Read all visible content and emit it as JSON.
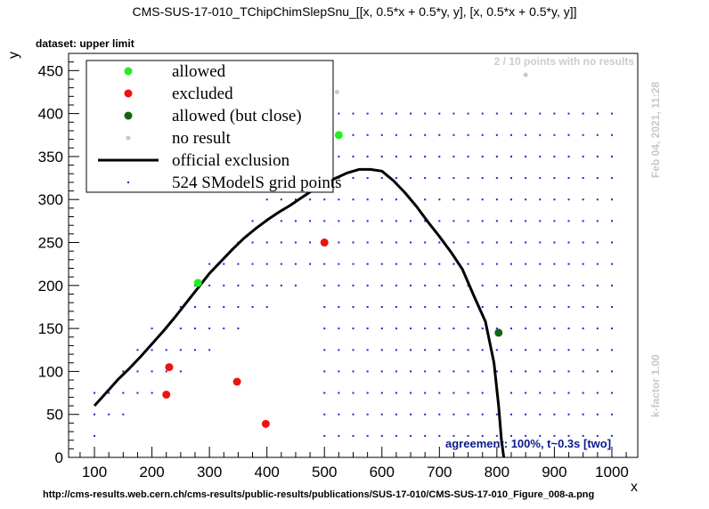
{
  "title": "CMS-SUS-17-010_TChipChimSlepSnu_[[x, 0.5*x + 0.5*y, y], [x, 0.5*x + 0.5*y, y]]",
  "dataset_label": "dataset: upper limit",
  "no_results_note": "2 / 10 points with no results",
  "agreement_note": "agreement: 100%, t~0.3s [two]",
  "url": "http://cms-results.web.cern.ch/cms-results/public-results/publications/SUS-17-010/CMS-SUS-17-010_Figure_008-a.png",
  "date_stamp": "Feb 04, 2021, 11:28",
  "kfactor": "k-factor 1.00",
  "colors": {
    "allowed": "#22ee22",
    "excluded": "#ee1111",
    "allowed_close": "#116611",
    "no_result": "#c8c8c8",
    "grid": "#2222cc",
    "exclusion": "#000000"
  },
  "chart_data": {
    "type": "scatter",
    "xlabel": "x",
    "ylabel": "y",
    "xlim": [
      55,
      1045
    ],
    "ylim": [
      0,
      470
    ],
    "xticks": [
      100,
      200,
      300,
      400,
      500,
      600,
      700,
      800,
      900,
      1000
    ],
    "yticks": [
      0,
      50,
      100,
      150,
      200,
      250,
      300,
      350,
      400,
      450
    ],
    "legend": {
      "position": "top-left",
      "entries": [
        {
          "key": "allowed",
          "label": "allowed"
        },
        {
          "key": "excluded",
          "label": "excluded"
        },
        {
          "key": "allowed_close",
          "label": "allowed (but close)"
        },
        {
          "key": "no_result",
          "label": "no result"
        },
        {
          "key": "exclusion",
          "label": "official exclusion"
        },
        {
          "key": "grid",
          "label": "524 SModelS grid points"
        }
      ]
    },
    "points": {
      "allowed": [
        [
          280,
          203
        ],
        [
          525,
          375
        ]
      ],
      "excluded": [
        [
          225,
          73
        ],
        [
          230,
          105
        ],
        [
          348,
          88
        ],
        [
          398,
          39
        ],
        [
          500,
          250
        ]
      ],
      "allowed_close": [
        [
          803,
          145
        ]
      ],
      "no_result": [
        [
          522,
          425
        ],
        [
          850,
          445
        ]
      ]
    },
    "grid_points": {
      "x_start": 100,
      "x_end": 1000,
      "x_step": 25,
      "y_start": 25,
      "y_end": 400,
      "y_step": 25
    },
    "official_exclusion": [
      [
        100,
        60
      ],
      [
        120,
        75
      ],
      [
        140,
        90
      ],
      [
        160,
        103
      ],
      [
        180,
        117
      ],
      [
        200,
        132
      ],
      [
        220,
        147
      ],
      [
        240,
        163
      ],
      [
        260,
        180
      ],
      [
        280,
        197
      ],
      [
        300,
        214
      ],
      [
        320,
        228
      ],
      [
        340,
        242
      ],
      [
        360,
        255
      ],
      [
        380,
        266
      ],
      [
        400,
        276
      ],
      [
        420,
        285
      ],
      [
        440,
        293
      ],
      [
        460,
        302
      ],
      [
        480,
        311
      ],
      [
        500,
        319
      ],
      [
        520,
        325
      ],
      [
        540,
        331
      ],
      [
        560,
        335
      ],
      [
        580,
        335
      ],
      [
        600,
        333
      ],
      [
        620,
        322
      ],
      [
        640,
        308
      ],
      [
        660,
        292
      ],
      [
        680,
        274
      ],
      [
        700,
        257
      ],
      [
        720,
        239
      ],
      [
        740,
        219
      ],
      [
        760,
        188
      ],
      [
        780,
        158
      ],
      [
        795,
        110
      ],
      [
        803,
        60
      ],
      [
        808,
        20
      ],
      [
        812,
        0
      ]
    ]
  }
}
